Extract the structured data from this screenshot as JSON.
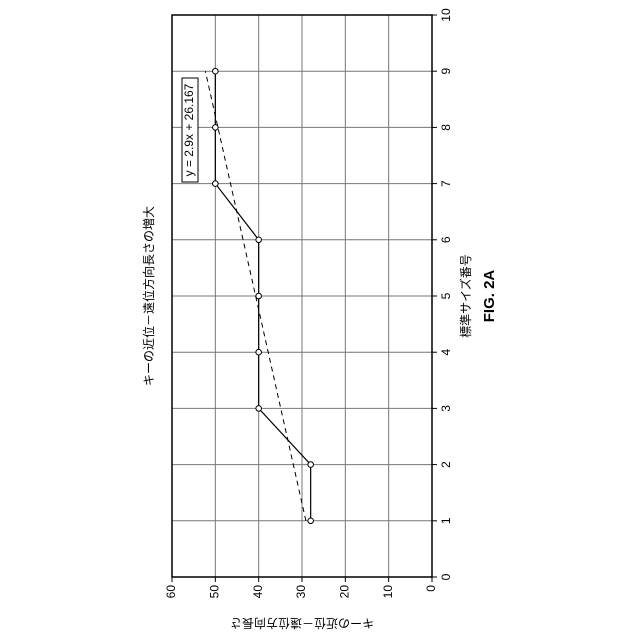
{
  "chart_data": {
    "type": "line",
    "title": "キーの近位－遠位方向長さの増大",
    "x_label": "標準サイズ番号",
    "y_label": "キーの近位－遠位方向長さ",
    "figure_label": "FIG. 2A",
    "x": [
      1,
      2,
      3,
      4,
      5,
      6,
      7,
      8,
      9
    ],
    "series": [
      {
        "color": "#000000",
        "values": [
          28,
          28,
          40,
          40,
          40,
          40,
          50,
          50,
          50
        ]
      }
    ],
    "trendline": {
      "label": "y = 2.9x + 26.167",
      "x": [
        1,
        9
      ],
      "values": [
        29.1,
        52.3
      ],
      "color": "#000000"
    },
    "xlim": [
      0,
      10
    ],
    "xticks": [
      0,
      1,
      2,
      3,
      4,
      5,
      6,
      7,
      8,
      9,
      10
    ],
    "ylim": [
      0,
      60
    ],
    "yticks": [
      0,
      10,
      20,
      30,
      40,
      50,
      60
    ],
    "grid": true
  }
}
